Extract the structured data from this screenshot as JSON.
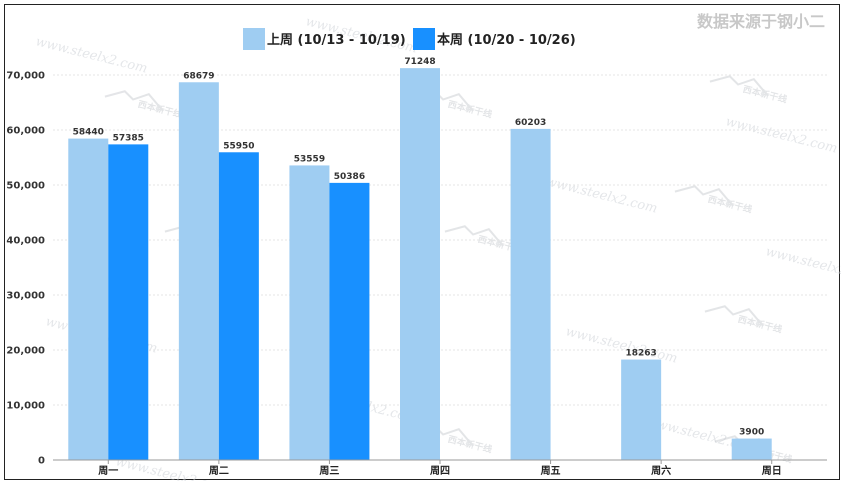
{
  "source_text": "数据来源于钢小二",
  "watermark_text": "www.steelx2.com",
  "watermark_logo": "西本新干线",
  "colors": {
    "prev": "#9fcdf2",
    "curr": "#1890ff",
    "grid": "#e6e6e6",
    "axis": "#999999"
  },
  "chart_data": {
    "type": "bar",
    "categories": [
      "周一",
      "周二",
      "周三",
      "周四",
      "周五",
      "周六",
      "周日"
    ],
    "series": [
      {
        "name": "上周 (10/13 - 10/19)",
        "values": [
          58440,
          68679,
          53559,
          71248,
          60203,
          18263,
          3900
        ]
      },
      {
        "name": "本周 (10/20 - 10/26)",
        "values": [
          57385,
          55950,
          50386,
          null,
          null,
          null,
          null
        ]
      }
    ],
    "ylim": [
      0,
      70000
    ],
    "yticks": [
      0,
      10000,
      20000,
      30000,
      40000,
      50000,
      60000,
      70000
    ],
    "ytick_labels": [
      "0",
      "10,000",
      "20,000",
      "30,000",
      "40,000",
      "50,000",
      "60,000",
      "70,000"
    ],
    "grid": true,
    "legend": "top-center",
    "data_labels": true
  }
}
